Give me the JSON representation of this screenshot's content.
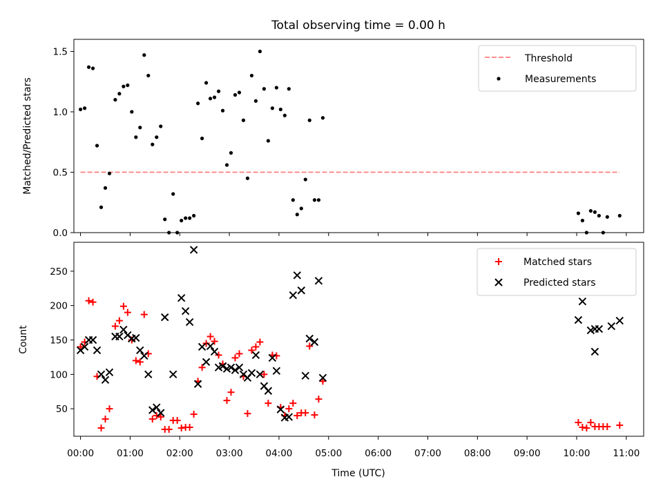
{
  "chart_data": [
    {
      "type": "scatter",
      "title": "Total observing time = 0.00 h",
      "xlabel": "",
      "ylabel": "Matched/Predicted stars",
      "xlim": [
        "23:52",
        "11:21"
      ],
      "ylim": [
        0.0,
        1.6
      ],
      "yticks": [
        "0.0",
        "0.5",
        "1.0",
        "1.5"
      ],
      "legend": {
        "position": "top-right",
        "entries": [
          "Threshold",
          "Measurements"
        ]
      },
      "threshold": {
        "name": "Threshold",
        "y": 0.5,
        "x_start": "00:00",
        "x_end": "10:52",
        "color": "#ff7f7f",
        "style": "dashed"
      },
      "series": [
        {
          "name": "Measurements",
          "color": "#000000",
          "points": [
            [
              "00:00",
              1.02
            ],
            [
              "00:05",
              1.03
            ],
            [
              "00:10",
              1.37
            ],
            [
              "00:15",
              1.36
            ],
            [
              "00:20",
              0.72
            ],
            [
              "00:25",
              0.21
            ],
            [
              "00:30",
              0.37
            ],
            [
              "00:35",
              0.49
            ],
            [
              "00:42",
              1.1
            ],
            [
              "00:47",
              1.15
            ],
            [
              "00:52",
              1.21
            ],
            [
              "00:57",
              1.22
            ],
            [
              "01:02",
              1.0
            ],
            [
              "01:07",
              0.79
            ],
            [
              "01:12",
              0.87
            ],
            [
              "01:17",
              1.47
            ],
            [
              "01:22",
              1.3
            ],
            [
              "01:27",
              0.73
            ],
            [
              "01:32",
              0.79
            ],
            [
              "01:37",
              0.88
            ],
            [
              "01:42",
              0.11
            ],
            [
              "01:47",
              0.0
            ],
            [
              "01:52",
              0.32
            ],
            [
              "01:57",
              0.0
            ],
            [
              "02:02",
              0.1
            ],
            [
              "02:07",
              0.12
            ],
            [
              "02:12",
              0.12
            ],
            [
              "02:17",
              0.14
            ],
            [
              "02:22",
              1.07
            ],
            [
              "02:27",
              0.78
            ],
            [
              "02:32",
              1.24
            ],
            [
              "02:37",
              1.11
            ],
            [
              "02:42",
              1.12
            ],
            [
              "02:47",
              1.17
            ],
            [
              "02:52",
              1.01
            ],
            [
              "02:57",
              0.56
            ],
            [
              "03:02",
              0.66
            ],
            [
              "03:07",
              1.14
            ],
            [
              "03:12",
              1.16
            ],
            [
              "03:17",
              0.93
            ],
            [
              "03:22",
              0.45
            ],
            [
              "03:27",
              1.3
            ],
            [
              "03:32",
              1.09
            ],
            [
              "03:37",
              1.5
            ],
            [
              "03:42",
              1.19
            ],
            [
              "03:47",
              0.76
            ],
            [
              "03:52",
              1.03
            ],
            [
              "03:57",
              1.2
            ],
            [
              "04:02",
              1.02
            ],
            [
              "04:07",
              0.97
            ],
            [
              "04:12",
              1.19
            ],
            [
              "04:17",
              0.27
            ],
            [
              "04:22",
              0.15
            ],
            [
              "04:27",
              0.2
            ],
            [
              "04:32",
              0.44
            ],
            [
              "04:37",
              0.93
            ],
            [
              "04:43",
              0.27
            ],
            [
              "04:48",
              0.27
            ],
            [
              "04:53",
              0.95
            ],
            [
              "10:02",
              0.16
            ],
            [
              "10:07",
              0.1
            ],
            [
              "10:12",
              0.0
            ],
            [
              "10:17",
              0.18
            ],
            [
              "10:22",
              0.17
            ],
            [
              "10:27",
              0.14
            ],
            [
              "10:32",
              0.0
            ],
            [
              "10:37",
              0.13
            ],
            [
              "10:52",
              0.14
            ]
          ]
        }
      ]
    },
    {
      "type": "scatter",
      "title": "",
      "xlabel": "Time (UTC)",
      "ylabel": "Count",
      "xlim": [
        "23:52",
        "11:21"
      ],
      "ylim": [
        10,
        292
      ],
      "yticks": [
        "50",
        "100",
        "150",
        "200",
        "250"
      ],
      "xticks": [
        "00:00",
        "01:00",
        "02:00",
        "03:00",
        "04:00",
        "05:00",
        "06:00",
        "07:00",
        "08:00",
        "09:00",
        "10:00",
        "11:00"
      ],
      "legend": {
        "position": "top-right",
        "entries": [
          "Matched stars",
          "Predicted stars"
        ]
      },
      "series": [
        {
          "name": "Matched stars",
          "color": "#ff0000",
          "marker": "+",
          "points": [
            [
              "00:00",
              140
            ],
            [
              "00:05",
              147
            ],
            [
              "00:10",
              207
            ],
            [
              "00:15",
              205
            ],
            [
              "00:20",
              97
            ],
            [
              "00:25",
              22
            ],
            [
              "00:30",
              35
            ],
            [
              "00:35",
              50
            ],
            [
              "00:42",
              170
            ],
            [
              "00:47",
              178
            ],
            [
              "00:52",
              199
            ],
            [
              "00:57",
              190
            ],
            [
              "01:02",
              150
            ],
            [
              "01:07",
              120
            ],
            [
              "01:12",
              118
            ],
            [
              "01:17",
              187
            ],
            [
              "01:22",
              130
            ],
            [
              "01:27",
              35
            ],
            [
              "01:32",
              40
            ],
            [
              "01:37",
              38
            ],
            [
              "01:42",
              20
            ],
            [
              "01:47",
              20
            ],
            [
              "01:52",
              33
            ],
            [
              "01:57",
              33
            ],
            [
              "02:02",
              22
            ],
            [
              "02:07",
              23
            ],
            [
              "02:12",
              23
            ],
            [
              "02:17",
              42
            ],
            [
              "02:22",
              90
            ],
            [
              "02:27",
              110
            ],
            [
              "02:32",
              145
            ],
            [
              "02:37",
              155
            ],
            [
              "02:42",
              148
            ],
            [
              "02:47",
              128
            ],
            [
              "02:52",
              115
            ],
            [
              "02:57",
              62
            ],
            [
              "03:02",
              74
            ],
            [
              "03:07",
              124
            ],
            [
              "03:12",
              130
            ],
            [
              "03:17",
              97
            ],
            [
              "03:22",
              43
            ],
            [
              "03:27",
              135
            ],
            [
              "03:32",
              140
            ],
            [
              "03:37",
              147
            ],
            [
              "03:42",
              100
            ],
            [
              "03:47",
              58
            ],
            [
              "03:52",
              128
            ],
            [
              "03:57",
              127
            ],
            [
              "04:02",
              52
            ],
            [
              "04:07",
              40
            ],
            [
              "04:12",
              50
            ],
            [
              "04:17",
              58
            ],
            [
              "04:22",
              40
            ],
            [
              "04:27",
              44
            ],
            [
              "04:32",
              44
            ],
            [
              "04:37",
              141
            ],
            [
              "04:43",
              41
            ],
            [
              "04:48",
              64
            ],
            [
              "04:53",
              90
            ],
            [
              "10:02",
              30
            ],
            [
              "10:07",
              23
            ],
            [
              "10:12",
              22
            ],
            [
              "10:17",
              30
            ],
            [
              "10:22",
              24
            ],
            [
              "10:27",
              24
            ],
            [
              "10:32",
              24
            ],
            [
              "10:37",
              24
            ],
            [
              "10:52",
              26
            ]
          ]
        },
        {
          "name": "Predicted stars",
          "color": "#000000",
          "marker": "x",
          "points": [
            [
              "00:00",
              135
            ],
            [
              "00:05",
              140
            ],
            [
              "00:10",
              150
            ],
            [
              "00:15",
              150
            ],
            [
              "00:20",
              135
            ],
            [
              "00:25",
              100
            ],
            [
              "00:30",
              92
            ],
            [
              "00:35",
              103
            ],
            [
              "00:42",
              155
            ],
            [
              "00:47",
              155
            ],
            [
              "00:52",
              165
            ],
            [
              "00:57",
              157
            ],
            [
              "01:02",
              152
            ],
            [
              "01:07",
              153
            ],
            [
              "01:12",
              135
            ],
            [
              "01:17",
              127
            ],
            [
              "01:22",
              100
            ],
            [
              "01:27",
              48
            ],
            [
              "01:32",
              52
            ],
            [
              "01:37",
              44
            ],
            [
              "01:42",
              183
            ],
            [
              "01:52",
              100
            ],
            [
              "02:02",
              211
            ],
            [
              "02:07",
              192
            ],
            [
              "02:12",
              176
            ],
            [
              "02:17",
              281
            ],
            [
              "02:22",
              86
            ],
            [
              "02:27",
              140
            ],
            [
              "02:32",
              118
            ],
            [
              "02:37",
              141
            ],
            [
              "02:42",
              133
            ],
            [
              "02:47",
              110
            ],
            [
              "02:52",
              112
            ],
            [
              "02:57",
              108
            ],
            [
              "03:02",
              110
            ],
            [
              "03:07",
              106
            ],
            [
              "03:12",
              110
            ],
            [
              "03:17",
              100
            ],
            [
              "03:22",
              95
            ],
            [
              "03:27",
              102
            ],
            [
              "03:32",
              128
            ],
            [
              "03:37",
              100
            ],
            [
              "03:42",
              83
            ],
            [
              "03:47",
              76
            ],
            [
              "03:52",
              124
            ],
            [
              "03:57",
              105
            ],
            [
              "04:02",
              49
            ],
            [
              "04:07",
              37
            ],
            [
              "04:12",
              38
            ],
            [
              "04:17",
              215
            ],
            [
              "04:22",
              244
            ],
            [
              "04:27",
              222
            ],
            [
              "04:32",
              98
            ],
            [
              "04:37",
              152
            ],
            [
              "04:43",
              147
            ],
            [
              "04:48",
              236
            ],
            [
              "04:53",
              95
            ],
            [
              "10:02",
              179
            ],
            [
              "10:07",
              206
            ],
            [
              "10:17",
              164
            ],
            [
              "10:22",
              166
            ],
            [
              "10:27",
              166
            ],
            [
              "10:22",
              133
            ],
            [
              "10:42",
              170
            ],
            [
              "10:52",
              178
            ]
          ]
        }
      ]
    }
  ]
}
